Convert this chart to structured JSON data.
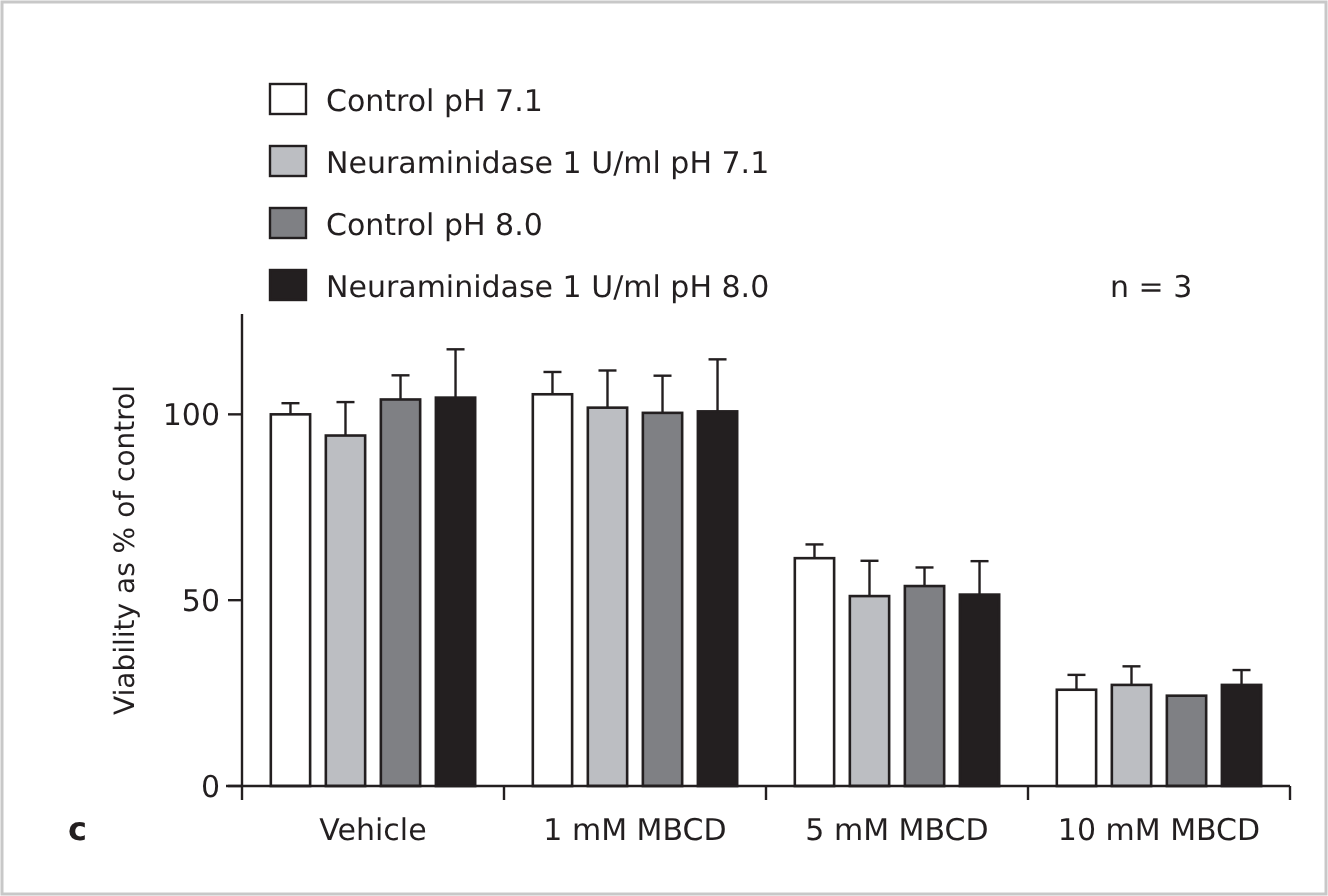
{
  "chart_data": {
    "type": "bar",
    "ylabel": "Viability as % of control",
    "categories": [
      "Vehicle",
      "1 mM MBCD",
      "5 mM MBCD",
      "10 mM MBCD"
    ],
    "series": [
      {
        "name": "Control pH 7.1",
        "color": "#ffffff",
        "values": [
          100,
          105.4,
          61.3,
          25.9
        ],
        "errors": [
          3,
          6,
          3.7,
          4
        ]
      },
      {
        "name": "Neuraminidase 1 U/ml pH 7.1",
        "color": "#bcbec2",
        "values": [
          94.3,
          101.8,
          51.1,
          27.2
        ],
        "errors": [
          9,
          10,
          9.5,
          5
        ]
      },
      {
        "name": "Control pH 8.0",
        "color": "#7f8084",
        "values": [
          104,
          100.4,
          53.8,
          24.3
        ],
        "errors": [
          6.5,
          10,
          5,
          null
        ]
      },
      {
        "name": "Neuraminidase 1 U/ml pH 8.0",
        "color": "#231f20",
        "values": [
          104.5,
          100.8,
          51.5,
          27.2
        ],
        "errors": [
          13,
          14,
          9,
          4
        ]
      }
    ],
    "ylim": [
      0,
      127
    ],
    "yticks": [
      0,
      50,
      100
    ],
    "grid": false,
    "legend": "top left",
    "annotations": [
      "n = 3",
      "c"
    ]
  }
}
